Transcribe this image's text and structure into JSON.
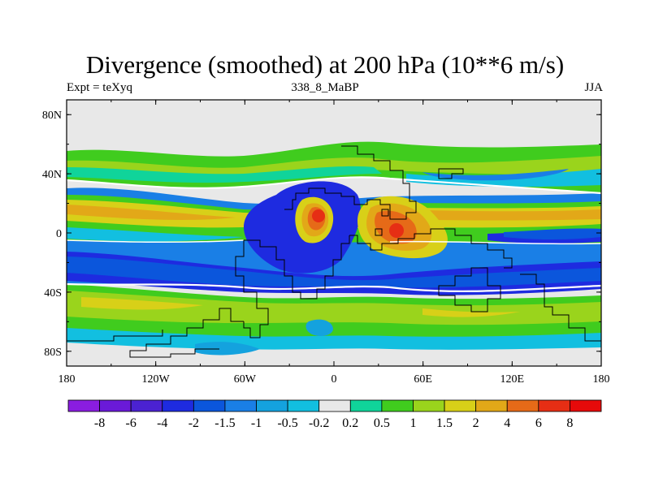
{
  "title": "Divergence (smoothed) at 200 hPa (10**6 m/s)",
  "left_label": "Expt = teXyq",
  "center_label": "338_8_MaBP",
  "right_label": "JJA",
  "map": {
    "lat_ticks": [
      "80N",
      "40N",
      "0",
      "40S",
      "80S"
    ],
    "lat_values": [
      80,
      40,
      0,
      -40,
      -80
    ],
    "lon_ticks": [
      "180",
      "120W",
      "60W",
      "0",
      "60E",
      "120E",
      "180"
    ],
    "lon_values": [
      -180,
      -120,
      -60,
      0,
      60,
      120,
      180
    ],
    "lon_range": [
      -180,
      180
    ],
    "lat_range": [
      -90,
      90
    ]
  },
  "colorbar": {
    "labels": [
      "-8",
      "-6",
      "-4",
      "-2",
      "-1.5",
      "-1",
      "-0.5",
      "-0.2",
      "0.2",
      "0.5",
      "1",
      "1.5",
      "2",
      "4",
      "6",
      "8"
    ],
    "colors": [
      "#8a1de0",
      "#6a1ad8",
      "#4b22d2",
      "#1e2be0",
      "#0b56dc",
      "#1a7fe6",
      "#14a2de",
      "#12bfe0",
      "#e8e8e8",
      "#10d49a",
      "#40cc1e",
      "#9ad41c",
      "#d8d018",
      "#e2a818",
      "#e66a18",
      "#e62e14",
      "#e60a0a"
    ]
  }
}
